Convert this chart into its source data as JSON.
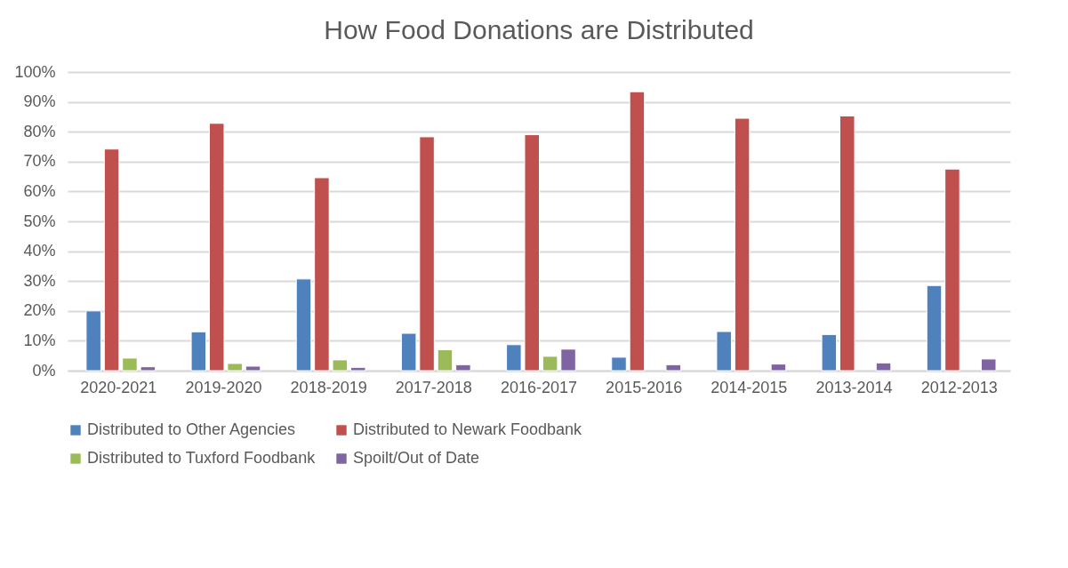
{
  "chart_data": {
    "type": "bar",
    "title": "How Food Donations are Distributed",
    "categories": [
      "2020-2021",
      "2019-2020",
      "2018-2019",
      "2017-2018",
      "2016-2017",
      "2015-2016",
      "2014-2015",
      "2013-2014",
      "2012-2013"
    ],
    "series": [
      {
        "name": "Distributed to Other Agencies",
        "color": "#4f81bd",
        "values": [
          20.0,
          13.0,
          30.7,
          12.5,
          8.7,
          4.5,
          13.1,
          12.1,
          28.5
        ]
      },
      {
        "name": "Distributed to Newark Foodbank",
        "color": "#c0504d",
        "values": [
          74.2,
          82.8,
          64.6,
          78.3,
          79.0,
          93.4,
          84.5,
          85.3,
          67.5
        ]
      },
      {
        "name": "Distributed to Tuxford Foodbank",
        "color": "#9bbb59",
        "values": [
          4.2,
          2.4,
          3.6,
          7.0,
          4.8,
          null,
          null,
          null,
          null
        ]
      },
      {
        "name": "Spoilt/Out of Date",
        "color": "#8064a2",
        "values": [
          1.3,
          1.5,
          1.1,
          2.0,
          7.2,
          2.0,
          2.2,
          2.6,
          3.9
        ]
      }
    ],
    "ylim": [
      0,
      100
    ],
    "yticks": [
      {
        "value": 0,
        "label": "0%"
      },
      {
        "value": 10,
        "label": "10%"
      },
      {
        "value": 20,
        "label": "20%"
      },
      {
        "value": 30,
        "label": "30%"
      },
      {
        "value": 40,
        "label": "40%"
      },
      {
        "value": 50,
        "label": "50%"
      },
      {
        "value": 60,
        "label": "60%"
      },
      {
        "value": 70,
        "label": "70%"
      },
      {
        "value": 80,
        "label": "80%"
      },
      {
        "value": 90,
        "label": "90%"
      },
      {
        "value": 100,
        "label": "100%"
      }
    ],
    "grid": "y",
    "legend": "bottom"
  }
}
